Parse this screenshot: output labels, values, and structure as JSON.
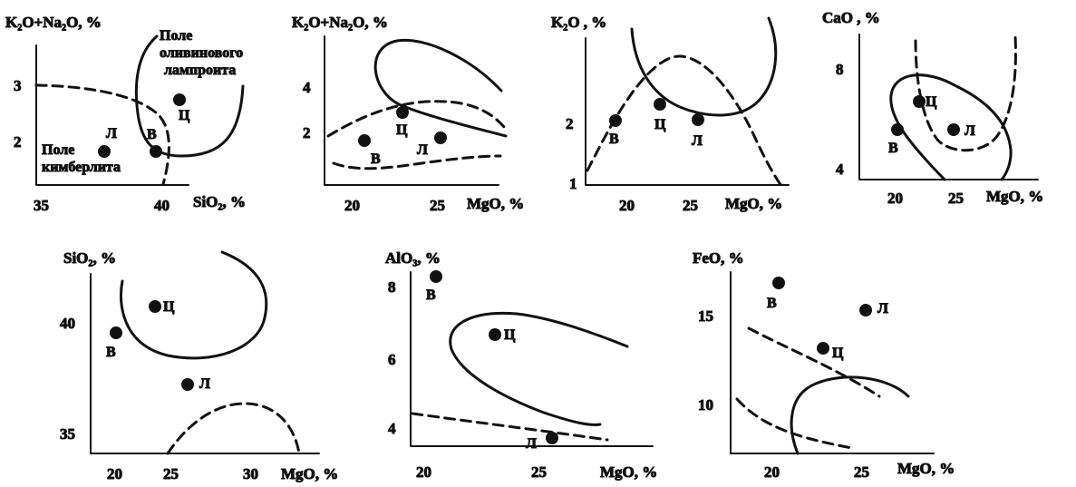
{
  "figure": {
    "panels": [
      {
        "id": "k2ona2o-sio2",
        "ylabel": "K₂O+Na₂O, %",
        "xlabel": "SiO₂, %",
        "xticks": [
          "35",
          "40"
        ],
        "yticks": [
          "2",
          "3"
        ],
        "point_labels": [
          "Л",
          "В",
          "Ц"
        ],
        "field_labels": [
          "Поле",
          "кимберлита",
          "Поле",
          "оливинового",
          "лампроита"
        ]
      },
      {
        "id": "k2ona2o-mgo",
        "ylabel": "K₂O+Na₂O, %",
        "xlabel": "MgO, %",
        "xticks": [
          "20",
          "25"
        ],
        "yticks": [
          "2",
          "4"
        ],
        "point_labels": [
          "В",
          "Ц",
          "Л"
        ]
      },
      {
        "id": "k2o-mgo",
        "ylabel": "K₂O , %",
        "xlabel": "MgO, %",
        "xticks": [
          "20",
          "25"
        ],
        "yticks": [
          "1",
          "2"
        ],
        "point_labels": [
          "В",
          "Ц",
          "Л"
        ]
      },
      {
        "id": "cao-mgo",
        "ylabel": "CaO , %",
        "xlabel": "MgO, %",
        "xticks": [
          "20",
          "25"
        ],
        "yticks": [
          "4",
          "8"
        ],
        "point_labels": [
          "В",
          "Ц",
          "Л"
        ]
      },
      {
        "id": "sio2-mgo",
        "ylabel": "SiO₂, %",
        "xlabel": "MgO, %",
        "xticks": [
          "20",
          "25",
          "30"
        ],
        "yticks": [
          "35",
          "40"
        ],
        "point_labels": [
          "В",
          "Ц",
          "Л"
        ]
      },
      {
        "id": "alo3-mgo",
        "ylabel": "AlO₃, %",
        "xlabel": "MgO, %",
        "xticks": [
          "20",
          "25"
        ],
        "yticks": [
          "4",
          "6",
          "8"
        ],
        "point_labels": [
          "В",
          "Ц",
          "Л"
        ]
      },
      {
        "id": "feo-mgo",
        "ylabel": "FeO, %",
        "xlabel": "MgO, %",
        "xticks": [
          "20",
          "25"
        ],
        "yticks": [
          "10",
          "15"
        ],
        "point_labels": [
          "В",
          "Л",
          "Ц"
        ]
      }
    ]
  },
  "chart_data": [
    {
      "type": "scatter",
      "xlabel": "SiO₂, %",
      "ylabel": "K₂O+Na₂O, %",
      "xlim": [
        34.6,
        43.5
      ],
      "ylim": [
        1.1,
        3.9
      ],
      "points": [
        {
          "label": "Л",
          "x": 37.2,
          "y": 1.8
        },
        {
          "label": "В",
          "x": 39.3,
          "y": 1.8
        },
        {
          "label": "Ц",
          "x": 40.5,
          "y": 2.7
        }
      ],
      "fields": [
        "Поле кимберлита",
        "Поле оливинового лампроита"
      ]
    },
    {
      "type": "scatter",
      "xlabel": "MgO, %",
      "ylabel": "K₂O+Na₂O, %",
      "xlim": [
        18.3,
        28.5
      ],
      "ylim": [
        0.1,
        6.2
      ],
      "points": [
        {
          "label": "В",
          "x": 20.5,
          "y": 1.5
        },
        {
          "label": "Ц",
          "x": 22.8,
          "y": 2.7
        },
        {
          "label": "Л",
          "x": 25.0,
          "y": 1.6
        }
      ]
    },
    {
      "type": "scatter",
      "xlabel": "MgO, %",
      "ylabel": "K₂O , %",
      "xlim": [
        17.0,
        31.3
      ],
      "ylim": [
        1.0,
        2.8
      ],
      "points": [
        {
          "label": "В",
          "x": 19.0,
          "y": 1.72
        },
        {
          "label": "Ц",
          "x": 22.2,
          "y": 1.92
        },
        {
          "label": "Л",
          "x": 25.3,
          "y": 1.72
        }
      ]
    },
    {
      "type": "scatter",
      "xlabel": "MgO, %",
      "ylabel": "CaO , %",
      "xlim": [
        18.4,
        29.5
      ],
      "ylim": [
        3.6,
        9.5
      ],
      "points": [
        {
          "label": "В",
          "x": 20.3,
          "y": 5.6
        },
        {
          "label": "Ц",
          "x": 22.3,
          "y": 6.7
        },
        {
          "label": "Л",
          "x": 25.3,
          "y": 5.6
        }
      ]
    },
    {
      "type": "scatter",
      "xlabel": "MgO, %",
      "ylabel": "SiO₂, %",
      "xlim": [
        17.8,
        33.7
      ],
      "ylim": [
        33.9,
        42.5
      ],
      "points": [
        {
          "label": "В",
          "x": 19.9,
          "y": 39.6
        },
        {
          "label": "Ц",
          "x": 22.8,
          "y": 40.8
        },
        {
          "label": "Л",
          "x": 25.2,
          "y": 37.2
        }
      ]
    },
    {
      "type": "scatter",
      "xlabel": "MgO, %",
      "ylabel": "AlO₃, %",
      "xlim": [
        18.8,
        30.5
      ],
      "ylim": [
        3.4,
        8.8
      ],
      "points": [
        {
          "label": "В",
          "x": 20.3,
          "y": 8.2
        },
        {
          "label": "Ц",
          "x": 22.9,
          "y": 6.7
        },
        {
          "label": "Л",
          "x": 25.4,
          "y": 3.6
        }
      ]
    },
    {
      "type": "scatter",
      "xlabel": "MgO, %",
      "ylabel": "FeO, %",
      "xlim": [
        17.4,
        28.6
      ],
      "ylim": [
        7.4,
        17.8
      ],
      "points": [
        {
          "label": "В",
          "x": 20.3,
          "y": 16.7
        },
        {
          "label": "Л",
          "x": 25.0,
          "y": 15.2
        },
        {
          "label": "Ц",
          "x": 22.7,
          "y": 13.0
        }
      ]
    }
  ]
}
